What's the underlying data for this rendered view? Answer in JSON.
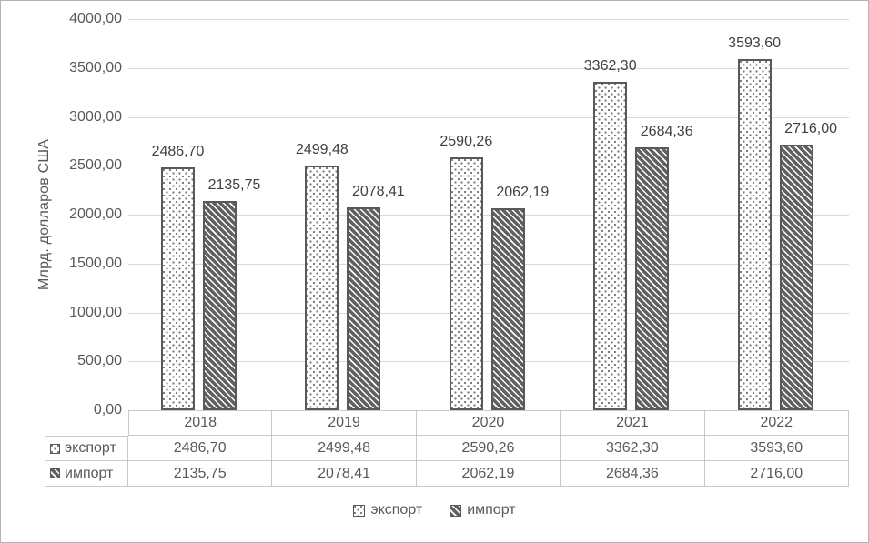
{
  "chart_data": {
    "type": "bar",
    "title": "",
    "xlabel": "",
    "ylabel": "Млрд. долларов США",
    "categories": [
      "2018",
      "2019",
      "2020",
      "2021",
      "2022"
    ],
    "series": [
      {
        "name": "экспорт",
        "pattern": "dots",
        "values": [
          2486.7,
          2499.48,
          2590.26,
          3362.3,
          3593.6
        ],
        "labels": [
          "2486,70",
          "2499,48",
          "2590,26",
          "3362,30",
          "3593,60"
        ]
      },
      {
        "name": "импорт",
        "pattern": "diagonal",
        "values": [
          2135.75,
          2078.41,
          2062.19,
          2684.36,
          2716.0
        ],
        "labels": [
          "2135,75",
          "2078,41",
          "2062,19",
          "2684,36",
          "2716,00"
        ]
      }
    ],
    "ylim": [
      0,
      4000
    ],
    "ytick_step": 500,
    "ytick_labels": [
      "0,00",
      "500,00",
      "1000,00",
      "1500,00",
      "2000,00",
      "2500,00",
      "3000,00",
      "3500,00",
      "4000,00"
    ],
    "grid": true,
    "legend_position": "bottom",
    "data_table_shown": true
  },
  "legend": {
    "items": [
      {
        "label": "экспорт",
        "pattern": "dots"
      },
      {
        "label": "импорт",
        "pattern": "diagonal"
      }
    ]
  },
  "colors": {
    "bar_border": "#595959",
    "pattern_foreground": "#616161",
    "gridline": "#d9d9d9",
    "table_border": "#c9c9c9",
    "axis_text": "#595959",
    "value_text": "#404040",
    "frame_border": "#b3b3b3",
    "background": "#ffffff"
  }
}
